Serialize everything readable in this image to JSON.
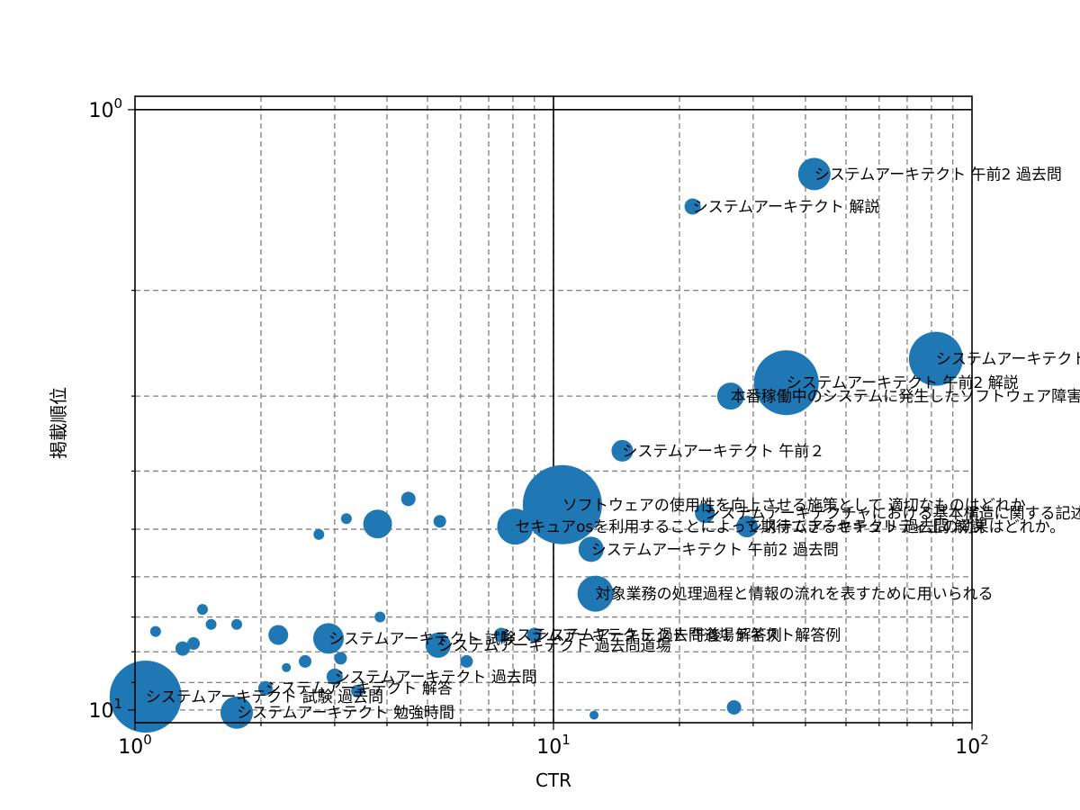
{
  "chart_data": {
    "type": "scatter",
    "xlabel": "CTR",
    "ylabel": "掲載順位",
    "x_scale": "log",
    "y_scale": "log",
    "y_inverted": true,
    "xlim": [
      1,
      100
    ],
    "ylim": [
      10.5,
      0.95
    ],
    "grid": true,
    "x_ticks": [
      {
        "value": 1,
        "base": "10",
        "exp": "0"
      },
      {
        "value": 10,
        "base": "10",
        "exp": "1"
      },
      {
        "value": 100,
        "base": "10",
        "exp": "2"
      }
    ],
    "y_ticks": [
      {
        "value": 1,
        "base": "10",
        "exp": "0"
      },
      {
        "value": 10,
        "base": "10",
        "exp": "1"
      }
    ],
    "colors": {
      "point": "#1f77b4",
      "grid": "#808080",
      "axis": "#000000"
    },
    "points": [
      {
        "x": 42,
        "y": 1.28,
        "s": 18,
        "label": "システムアーキテクト 午前2 過去問"
      },
      {
        "x": 21.5,
        "y": 1.45,
        "s": 9,
        "label": "システムアーキテクト 解説"
      },
      {
        "x": 82,
        "y": 2.6,
        "s": 30,
        "label": "システムアーキテクト"
      },
      {
        "x": 36,
        "y": 2.85,
        "s": 36,
        "label": "システムアーキテクト 午前2 解説"
      },
      {
        "x": 26.5,
        "y": 3.0,
        "s": 15,
        "label": "本番稼働中のシステムに発生したソフトウェア障害"
      },
      {
        "x": 14.6,
        "y": 3.7,
        "s": 12,
        "label": "システムアーキテクト 午前２"
      },
      {
        "x": 10.5,
        "y": 4.55,
        "s": 44,
        "label": "ソフトウェアの使用性を向上させる施策として 適切なものはどれか"
      },
      {
        "x": 23,
        "y": 4.7,
        "s": 11,
        "label": "システムアーキテクチャにおける基本構造に関する記述"
      },
      {
        "x": 29,
        "y": 4.95,
        "s": 12,
        "label": "システムアーキテクト 過去問 解説"
      },
      {
        "x": 8.1,
        "y": 4.95,
        "s": 20,
        "label": "セキュアosを利用することによって期待できるセキュリティ上の効果はどれか。"
      },
      {
        "x": 12.3,
        "y": 5.4,
        "s": 14,
        "label": "システムアーキテクト 午前2 過去問"
      },
      {
        "x": 12.6,
        "y": 6.4,
        "s": 20,
        "label": "対象業務の処理過程と情報の流れを表すために用いられる"
      },
      {
        "x": 2.9,
        "y": 7.6,
        "s": 17,
        "label": "システムアーキテクト 試験"
      },
      {
        "x": 5.3,
        "y": 7.8,
        "s": 14,
        "label": "システムアーキテクト 過去問道場"
      },
      {
        "x": 7.5,
        "y": 7.5,
        "s": 8,
        "label": "システムアーキテクト 過去問道場テキスト解答例"
      },
      {
        "x": 9.0,
        "y": 7.5,
        "s": 8,
        "label": "システムアーキテクト 午後1 解答例"
      },
      {
        "x": 1.06,
        "y": 9.5,
        "s": 40,
        "label": "システムアーキテクト 試験 過去問"
      },
      {
        "x": 1.75,
        "y": 10.1,
        "s": 18,
        "label": "システムアーキテクト 勉強時間"
      },
      {
        "x": 2.05,
        "y": 9.2,
        "s": 8,
        "label": "システムアーキテクト 解答"
      },
      {
        "x": 3.0,
        "y": 8.8,
        "s": 9,
        "label": "システムアーキテクト 過去問"
      },
      {
        "x": 4.5,
        "y": 4.45,
        "s": 8,
        "label": ""
      },
      {
        "x": 3.8,
        "y": 4.9,
        "s": 16,
        "label": ""
      },
      {
        "x": 5.35,
        "y": 4.85,
        "s": 7,
        "label": ""
      },
      {
        "x": 3.2,
        "y": 4.8,
        "s": 6,
        "label": ""
      },
      {
        "x": 2.75,
        "y": 5.1,
        "s": 6,
        "label": ""
      },
      {
        "x": 1.45,
        "y": 6.8,
        "s": 6,
        "label": ""
      },
      {
        "x": 1.12,
        "y": 7.4,
        "s": 6,
        "label": ""
      },
      {
        "x": 1.38,
        "y": 7.75,
        "s": 7,
        "label": ""
      },
      {
        "x": 1.3,
        "y": 7.9,
        "s": 8,
        "label": ""
      },
      {
        "x": 1.52,
        "y": 7.2,
        "s": 6,
        "label": ""
      },
      {
        "x": 1.75,
        "y": 7.2,
        "s": 6,
        "label": ""
      },
      {
        "x": 2.2,
        "y": 7.5,
        "s": 11,
        "label": ""
      },
      {
        "x": 2.3,
        "y": 8.5,
        "s": 5,
        "label": ""
      },
      {
        "x": 3.1,
        "y": 8.2,
        "s": 7,
        "label": ""
      },
      {
        "x": 3.4,
        "y": 9.3,
        "s": 7,
        "label": ""
      },
      {
        "x": 3.85,
        "y": 7.0,
        "s": 6,
        "label": ""
      },
      {
        "x": 2.55,
        "y": 8.3,
        "s": 7,
        "label": ""
      },
      {
        "x": 6.2,
        "y": 8.3,
        "s": 7,
        "label": ""
      },
      {
        "x": 12.5,
        "y": 10.2,
        "s": 5,
        "label": ""
      },
      {
        "x": 27,
        "y": 9.9,
        "s": 8,
        "label": ""
      }
    ]
  }
}
